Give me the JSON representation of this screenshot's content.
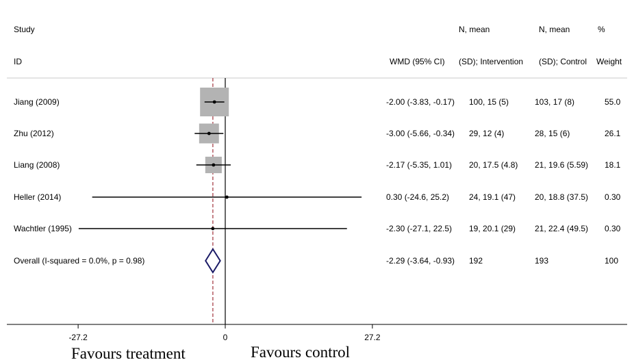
{
  "chart_data": {
    "type": "forest",
    "headers": {
      "study": [
        "Study",
        "ID"
      ],
      "effect": [
        "",
        "WMD (95% CI)"
      ],
      "intervention": [
        "N, mean",
        "(SD); Intervention"
      ],
      "control": [
        "N, mean",
        "(SD); Control"
      ],
      "weight": [
        "%",
        "Weight"
      ]
    },
    "studies": [
      {
        "label": "Jiang (2009)",
        "estimate": -2.0,
        "ci": [
          -3.83,
          -0.17
        ],
        "effect_text": "-2.00 (-3.83, -0.17)",
        "intervention": "100, 15 (5)",
        "control": "103, 17 (8)",
        "weight_text": "55.0",
        "weight": 55.0
      },
      {
        "label": "Zhu (2012)",
        "estimate": -3.0,
        "ci": [
          -5.66,
          -0.34
        ],
        "effect_text": "-3.00 (-5.66, -0.34)",
        "intervention": "29, 12 (4)",
        "control": "28, 15 (6)",
        "weight_text": "26.1",
        "weight": 26.1
      },
      {
        "label": "Liang (2008)",
        "estimate": -2.17,
        "ci": [
          -5.35,
          1.01
        ],
        "effect_text": "-2.17 (-5.35, 1.01)",
        "intervention": "20, 17.5 (4.8)",
        "control": "21, 19.6 (5.59)",
        "weight_text": "18.1",
        "weight": 18.1
      },
      {
        "label": "Heller (2014)",
        "estimate": 0.3,
        "ci": [
          -24.6,
          25.2
        ],
        "effect_text": "0.30 (-24.6, 25.2)",
        "intervention": "24, 19.1 (47)",
        "control": "20, 18.8 (37.5)",
        "weight_text": "0.30",
        "weight": 0.3
      },
      {
        "label": "Wachtler (1995)",
        "estimate": -2.3,
        "ci": [
          -27.1,
          22.5
        ],
        "effect_text": "-2.30 (-27.1, 22.5)",
        "intervention": "19, 20.1 (29)",
        "control": "21, 22.4 (49.5)",
        "weight_text": "0.30",
        "weight": 0.3
      }
    ],
    "overall": {
      "label": "Overall  (I-squared = 0.0%, p = 0.98)",
      "estimate": -2.29,
      "ci": [
        -3.64,
        -0.93
      ],
      "effect_text": "-2.29 (-3.64, -0.93)",
      "intervention": "192",
      "control": "193",
      "weight_text": "100"
    },
    "xlim": [
      -27.2,
      27.2
    ],
    "xticks": [
      -27.2,
      0,
      27.2
    ],
    "xtick_labels": [
      "-27.2",
      "0",
      "27.2"
    ],
    "favours_left": "Favours treatment",
    "favours_right": "Favours control",
    "colors": {
      "box": "#b3b3b3",
      "line": "#000000",
      "diamond": "#1a1a66",
      "overall_line": "#a0303a"
    }
  }
}
